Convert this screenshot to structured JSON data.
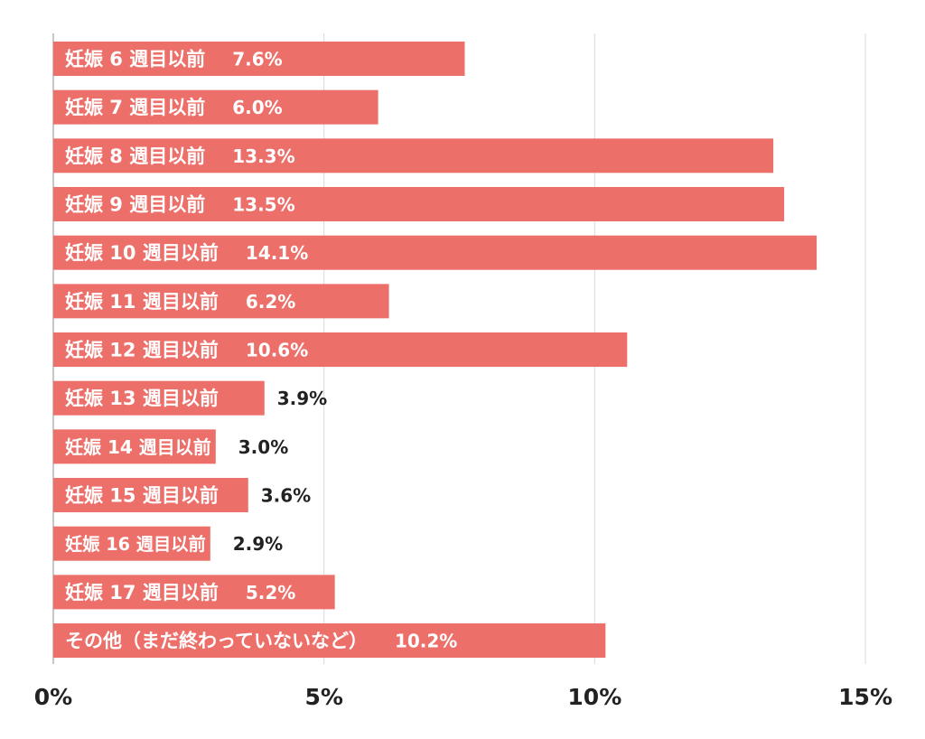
{
  "chart_data": {
    "type": "bar",
    "orientation": "horizontal",
    "categories": [
      "妊娠 6 週目以前",
      "妊娠 7 週目以前",
      "妊娠 8 週目以前",
      "妊娠 9 週目以前",
      "妊娠 10 週目以前",
      "妊娠 11 週目以前",
      "妊娠 12 週目以前",
      "妊娠 13 週目以前",
      "妊娠 14 週目以前",
      "妊娠 15 週目以前",
      "妊娠 16 週目以前",
      "妊娠 17 週目以前",
      "その他（まだ終わっていないなど）"
    ],
    "values": [
      7.6,
      6.0,
      13.3,
      13.5,
      14.1,
      6.2,
      10.6,
      3.9,
      3.0,
      3.6,
      2.9,
      5.2,
      10.2
    ],
    "value_labels": [
      "7.6%",
      "6.0%",
      "13.3%",
      "13.5%",
      "14.1%",
      "6.2%",
      "10.6%",
      "3.9%",
      "3.0%",
      "3.6%",
      "2.9%",
      "5.2%",
      "10.2%"
    ],
    "xlim": [
      0,
      15
    ],
    "xticks": [
      0,
      5,
      10,
      15
    ],
    "xtick_labels": [
      "0%",
      "5%",
      "10%",
      "15%"
    ],
    "grid": true,
    "title": "",
    "xlabel": "",
    "ylabel": "",
    "colors": {
      "bar": "#ec6f6a",
      "grid": "#d9d9d9",
      "axis": "#b3b3b3",
      "label_inside": "#ffffff",
      "label_outside": "#222222"
    }
  }
}
